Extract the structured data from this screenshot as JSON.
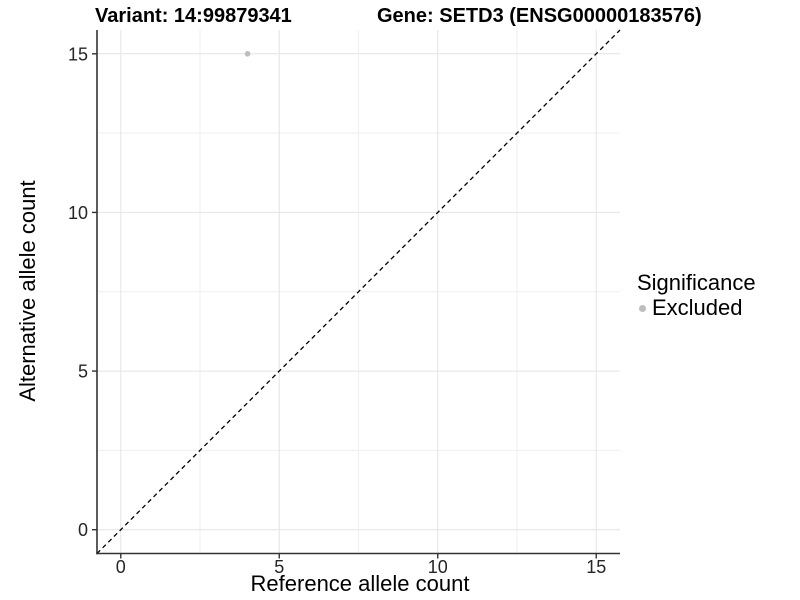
{
  "chart_data": {
    "type": "scatter",
    "title_left": "Variant: 14:99879341",
    "title_right": "Gene: SETD3 (ENSG00000183576)",
    "xlabel": "Reference allele count",
    "ylabel": "Alternative allele count",
    "xlim": [
      -0.75,
      15.75
    ],
    "ylim": [
      -0.75,
      15.75
    ],
    "x_ticks": [
      0,
      5,
      10,
      15
    ],
    "y_ticks": [
      0,
      5,
      10,
      15
    ],
    "x_minor_ticks": [
      2.5,
      7.5,
      12.5
    ],
    "y_minor_ticks": [
      2.5,
      7.5,
      12.5
    ],
    "grid": "major+minor",
    "series": [
      {
        "name": "Excluded",
        "color": "#bdbdbd",
        "points": [
          [
            4,
            15
          ]
        ]
      }
    ],
    "reference_line": {
      "slope": 1,
      "intercept": 0,
      "style": "dashed",
      "color": "#000000"
    },
    "legend": {
      "title": "Significance",
      "position": "right",
      "entries": [
        {
          "label": "Excluded",
          "color": "#bdbdbd",
          "marker": "circle-icon"
        }
      ]
    },
    "colors": {
      "background": "#ffffff",
      "grid_major": "#e4e4e4",
      "grid_minor": "#efefef",
      "axis_line": "#333333",
      "tick_mark": "#333333",
      "tick_label": "#262626",
      "text": "#000000"
    }
  }
}
